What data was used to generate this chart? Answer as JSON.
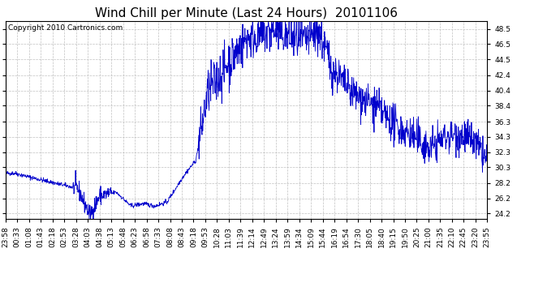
{
  "title": "Wind Chill per Minute (Last 24 Hours)  20101106",
  "copyright_text": "Copyright 2010 Cartronics.com",
  "line_color": "#0000cc",
  "background_color": "#ffffff",
  "grid_color": "#c0c0c0",
  "yticks": [
    24.2,
    26.2,
    28.2,
    30.3,
    32.3,
    34.3,
    36.3,
    38.4,
    40.4,
    42.4,
    44.5,
    46.5,
    48.5
  ],
  "ylim": [
    23.5,
    49.5
  ],
  "xtick_labels": [
    "23:58",
    "00:33",
    "01:08",
    "01:43",
    "02:18",
    "02:53",
    "03:28",
    "04:03",
    "04:38",
    "05:13",
    "05:48",
    "06:23",
    "06:58",
    "07:33",
    "08:08",
    "08:43",
    "09:18",
    "09:53",
    "10:28",
    "11:03",
    "11:39",
    "12:14",
    "12:49",
    "13:24",
    "13:59",
    "14:34",
    "15:09",
    "15:44",
    "16:19",
    "16:54",
    "17:30",
    "18:05",
    "18:40",
    "19:15",
    "19:50",
    "20:25",
    "21:00",
    "21:35",
    "22:10",
    "22:45",
    "23:20",
    "23:55"
  ],
  "title_fontsize": 11,
  "copyright_fontsize": 6.5,
  "tick_fontsize": 6.5,
  "figsize": [
    6.9,
    3.75
  ],
  "dpi": 100
}
